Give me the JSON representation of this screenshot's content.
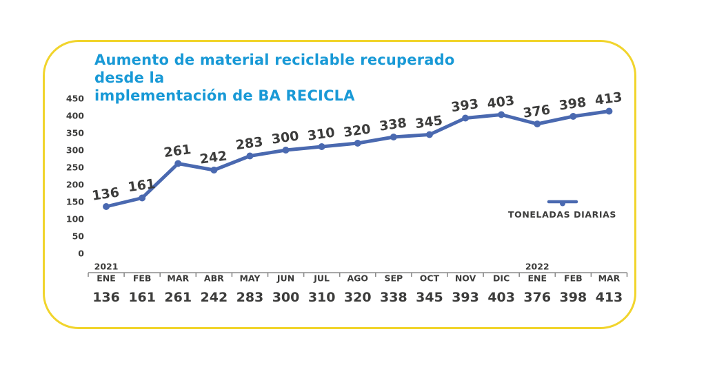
{
  "header": {
    "title_line1": "Aumento de material reciclable recuperado desde la",
    "title_line2": "implementación de BA RECICLA"
  },
  "chart_data": {
    "type": "line",
    "title": "Aumento de material reciclable recuperado desde la implementación de BA RECICLA",
    "categories": [
      "ENE",
      "FEB",
      "MAR",
      "ABR",
      "MAY",
      "JUN",
      "JUL",
      "AGO",
      "SEP",
      "OCT",
      "NOV",
      "DIC",
      "ENE",
      "FEB",
      "MAR"
    ],
    "year_markers": [
      {
        "label": "2021",
        "month_index": 0
      },
      {
        "label": "2022",
        "month_index": 12
      }
    ],
    "series": [
      {
        "name": "TONELADAS DIARIAS",
        "values": [
          136,
          161,
          261,
          242,
          283,
          300,
          310,
          320,
          338,
          345,
          393,
          403,
          376,
          398,
          413
        ]
      }
    ],
    "data_labels_shown": true,
    "value_row_shown": true,
    "y_ticks": [
      0,
      50,
      100,
      150,
      200,
      250,
      300,
      350,
      400,
      450
    ],
    "ylim": [
      0,
      450
    ],
    "grid": false,
    "legend_position": "right-middle",
    "colors": {
      "series_line": "#4A69B0",
      "title": "#1899D6",
      "axis_text": "#3C3C3B",
      "axis_line": "#8C8C8C",
      "card_border": "#F1D42C",
      "background": "#FFFFFF"
    }
  }
}
